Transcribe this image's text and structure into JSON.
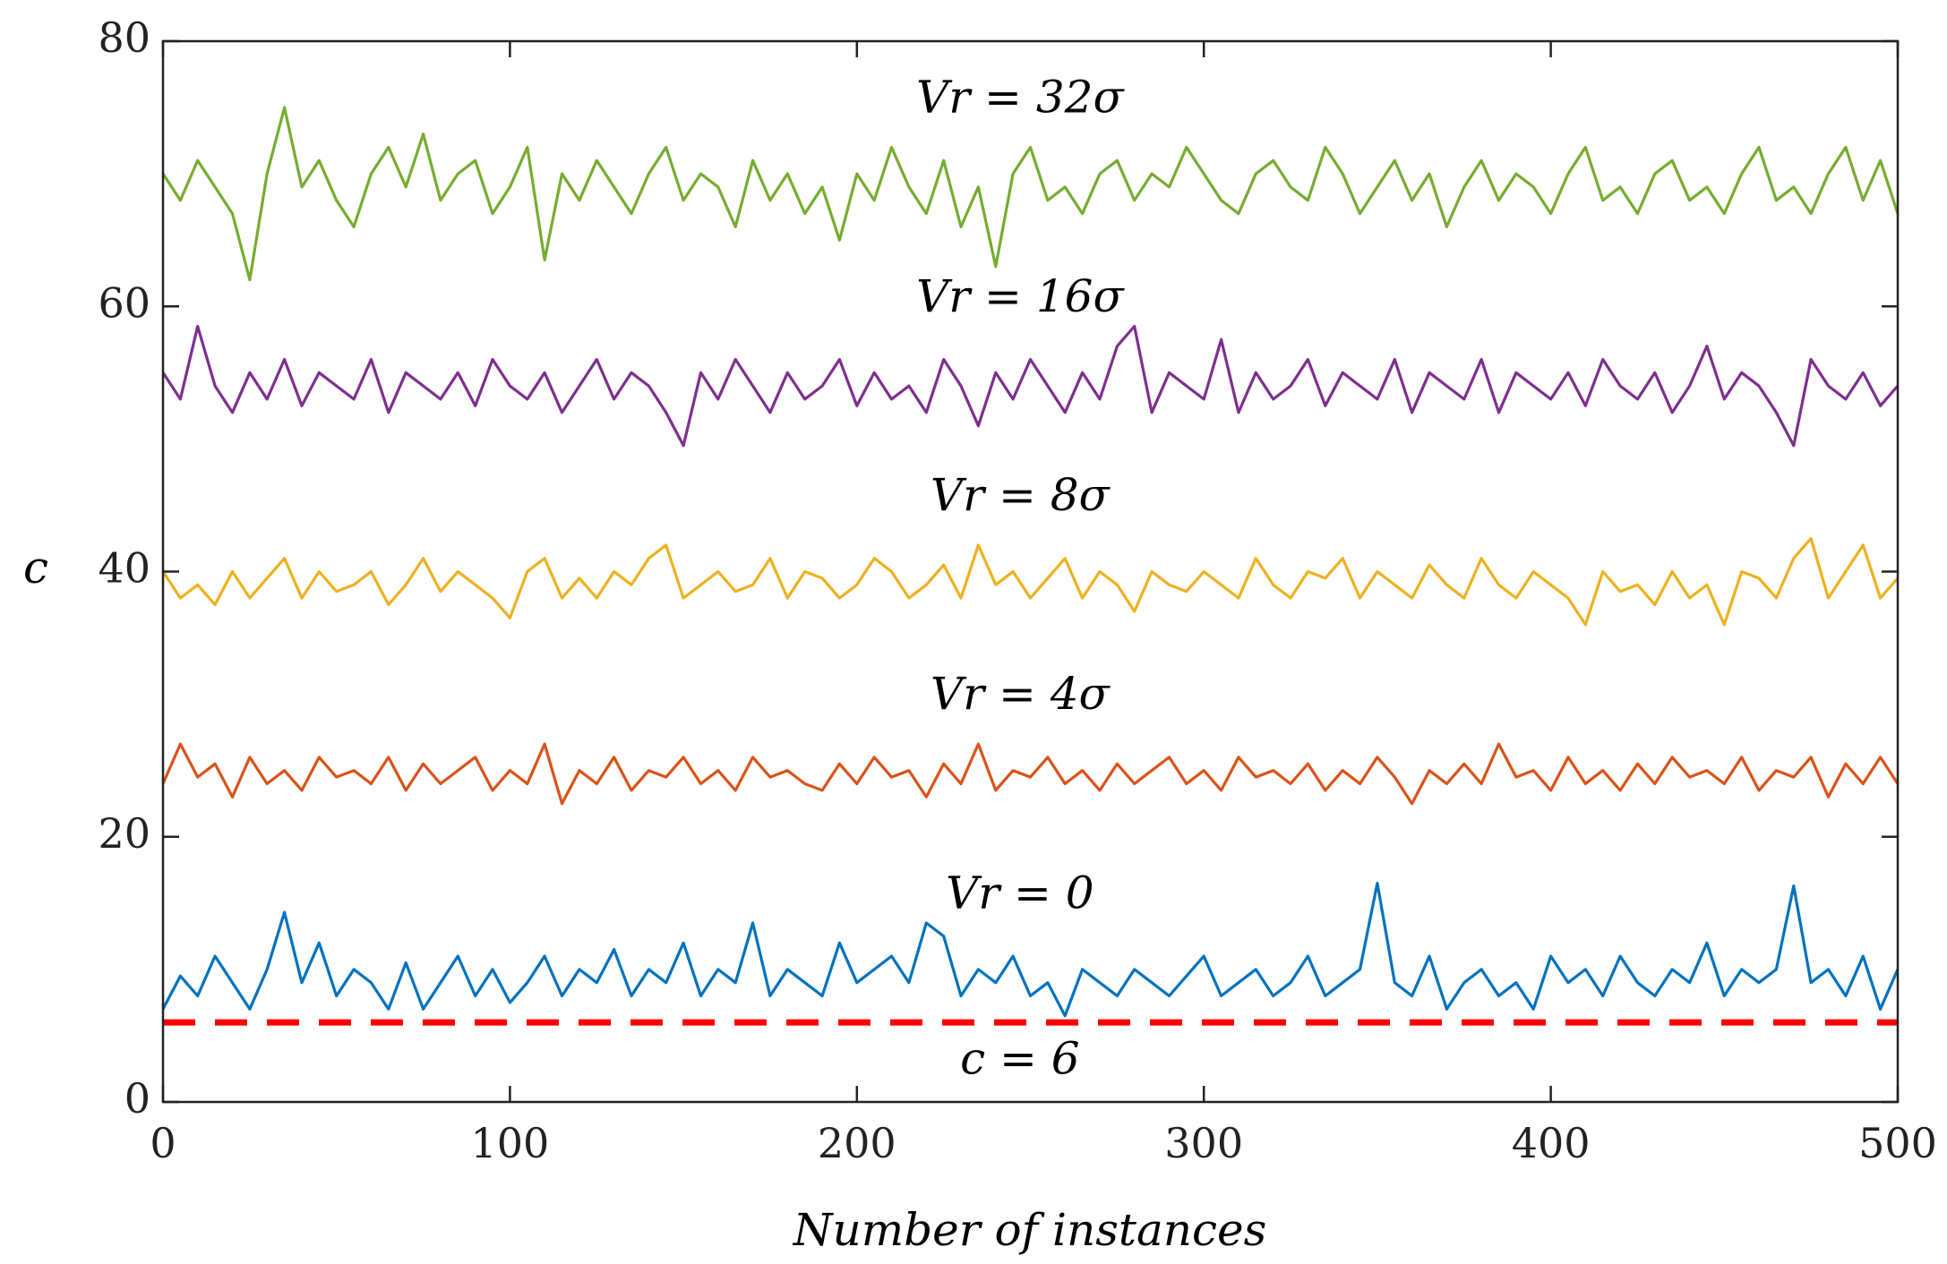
{
  "chart_data": {
    "type": "line",
    "xlabel": "Number of instances",
    "ylabel": "c",
    "xlim": [
      0,
      500
    ],
    "xticks": [
      0,
      100,
      200,
      300,
      400,
      500
    ],
    "ylim": [
      0,
      80
    ],
    "yticks": [
      0,
      20,
      40,
      60,
      80
    ],
    "x": [
      0,
      5,
      10,
      15,
      20,
      25,
      30,
      35,
      40,
      45,
      50,
      55,
      60,
      65,
      70,
      75,
      80,
      85,
      90,
      95,
      100,
      105,
      110,
      115,
      120,
      125,
      130,
      135,
      140,
      145,
      150,
      155,
      160,
      165,
      170,
      175,
      180,
      185,
      190,
      195,
      200,
      205,
      210,
      215,
      220,
      225,
      230,
      235,
      240,
      245,
      250,
      255,
      260,
      265,
      270,
      275,
      280,
      285,
      290,
      295,
      300,
      305,
      310,
      315,
      320,
      325,
      330,
      335,
      340,
      345,
      350,
      355,
      360,
      365,
      370,
      375,
      380,
      385,
      390,
      395,
      400,
      405,
      410,
      415,
      420,
      425,
      430,
      435,
      440,
      445,
      450,
      455,
      460,
      465,
      470,
      475,
      480,
      485,
      490,
      495,
      500
    ],
    "series": [
      {
        "color": "#0072bd",
        "values": [
          7,
          9.5,
          8,
          11,
          9,
          7,
          10,
          14.3,
          9,
          12,
          8,
          10,
          9,
          7,
          10.5,
          7,
          9,
          11,
          8,
          10,
          7.5,
          9,
          11,
          8,
          10,
          9,
          11.5,
          8,
          10,
          9,
          12,
          8,
          10,
          9,
          13.5,
          8,
          10,
          9,
          8,
          12,
          9,
          10,
          11,
          9,
          13.5,
          12.5,
          8,
          10,
          9,
          11,
          8,
          9,
          6.5,
          10,
          9,
          8,
          10,
          9,
          8,
          9.5,
          11,
          8,
          9,
          10,
          8,
          9,
          11,
          8,
          9,
          10,
          16.5,
          9,
          8,
          11,
          7,
          9,
          10,
          8,
          9,
          7,
          11,
          9,
          10,
          8,
          11,
          9,
          8,
          10,
          9,
          12,
          8,
          10,
          9,
          10,
          16.3,
          9,
          10,
          8,
          11,
          7,
          10
        ]
      },
      {
        "color": "#d95319",
        "values": [
          24,
          27,
          24.5,
          25.5,
          23,
          26,
          24,
          25,
          23.5,
          26,
          24.5,
          25,
          24,
          26,
          23.5,
          25.5,
          24,
          25,
          26,
          23.5,
          25,
          24,
          27,
          22.5,
          25,
          24,
          26,
          23.5,
          25,
          24.5,
          26,
          24,
          25,
          23.5,
          26,
          24.5,
          25,
          24,
          23.5,
          25.5,
          24,
          26,
          24.5,
          25,
          23,
          25.5,
          24,
          27,
          23.5,
          25,
          24.5,
          26,
          24,
          25,
          23.5,
          25.5,
          24,
          25,
          26,
          24,
          25,
          23.5,
          26,
          24.5,
          25,
          24,
          25.5,
          23.5,
          25,
          24,
          26,
          24.5,
          22.5,
          25,
          24,
          25.5,
          24,
          27,
          24.5,
          25,
          23.5,
          26,
          24,
          25,
          23.5,
          25.5,
          24,
          26,
          24.5,
          25,
          24,
          26,
          23.5,
          25,
          24.5,
          26,
          23,
          25.5,
          24,
          26,
          24
        ]
      },
      {
        "color": "#edb120",
        "values": [
          40,
          38,
          39,
          37.5,
          40,
          38,
          39.5,
          41,
          38,
          40,
          38.5,
          39,
          40,
          37.5,
          39,
          41,
          38.5,
          40,
          39,
          38,
          36.5,
          40,
          41,
          38,
          39.5,
          38,
          40,
          39,
          41,
          42,
          38,
          39,
          40,
          38.5,
          39,
          41,
          38,
          40,
          39.5,
          38,
          39,
          41,
          40,
          38,
          39,
          40.5,
          38,
          42,
          39,
          40,
          38,
          39.5,
          41,
          38,
          40,
          39,
          37,
          40,
          39,
          38.5,
          40,
          39,
          38,
          41,
          39,
          38,
          40,
          39.5,
          41,
          38,
          40,
          39,
          38,
          40.5,
          39,
          38,
          41,
          39,
          38,
          40,
          39,
          38,
          36,
          40,
          38.5,
          39,
          37.5,
          40,
          38,
          39,
          36,
          40,
          39.5,
          38,
          41,
          42.5,
          38,
          40,
          42,
          38,
          39.5
        ]
      },
      {
        "color": "#7e2f8e",
        "values": [
          55,
          53,
          58.5,
          54,
          52,
          55,
          53,
          56,
          52.5,
          55,
          54,
          53,
          56,
          52,
          55,
          54,
          53,
          55,
          52.5,
          56,
          54,
          53,
          55,
          52,
          54,
          56,
          53,
          55,
          54,
          52,
          49.5,
          55,
          53,
          56,
          54,
          52,
          55,
          53,
          54,
          56,
          52.5,
          55,
          53,
          54,
          52,
          56,
          54,
          51,
          55,
          53,
          56,
          54,
          52,
          55,
          53,
          57,
          58.5,
          52,
          55,
          54,
          53,
          57.5,
          52,
          55,
          53,
          54,
          56,
          52.5,
          55,
          54,
          53,
          56,
          52,
          55,
          54,
          53,
          56,
          52,
          55,
          54,
          53,
          55,
          52.5,
          56,
          54,
          53,
          55,
          52,
          54,
          57,
          53,
          55,
          54,
          52,
          49.5,
          56,
          54,
          53,
          55,
          52.5,
          54
        ]
      },
      {
        "color": "#77ac30",
        "values": [
          70,
          68,
          71,
          69,
          67,
          62,
          70,
          75,
          69,
          71,
          68,
          66,
          70,
          72,
          69,
          73,
          68,
          70,
          71,
          67,
          69,
          72,
          63.5,
          70,
          68,
          71,
          69,
          67,
          70,
          72,
          68,
          70,
          69,
          66,
          71,
          68,
          70,
          67,
          69,
          65,
          70,
          68,
          72,
          69,
          67,
          71,
          66,
          69,
          63,
          70,
          72,
          68,
          69,
          67,
          70,
          71,
          68,
          70,
          69,
          72,
          70,
          68,
          67,
          70,
          71,
          69,
          68,
          72,
          70,
          67,
          69,
          71,
          68,
          70,
          66,
          69,
          71,
          68,
          70,
          69,
          67,
          70,
          72,
          68,
          69,
          67,
          70,
          71,
          68,
          69,
          67,
          70,
          72,
          68,
          69,
          67,
          70,
          72,
          68,
          71,
          67
        ]
      }
    ],
    "hline": {
      "y": 6,
      "color": "#ff0000"
    },
    "annotations": [
      {
        "text": "Vr = 32σ",
        "x": 247,
        "y": 75.5
      },
      {
        "text": "Vr = 16σ",
        "x": 247,
        "y": 60.5
      },
      {
        "text": "Vr = 8σ",
        "x": 247,
        "y": 45.5
      },
      {
        "text": "Vr = 4σ",
        "x": 247,
        "y": 30.5
      },
      {
        "text": "Vr = 0",
        "x": 247,
        "y": 15.5
      },
      {
        "text": "c = 6",
        "x": 247,
        "y": 3
      }
    ]
  }
}
